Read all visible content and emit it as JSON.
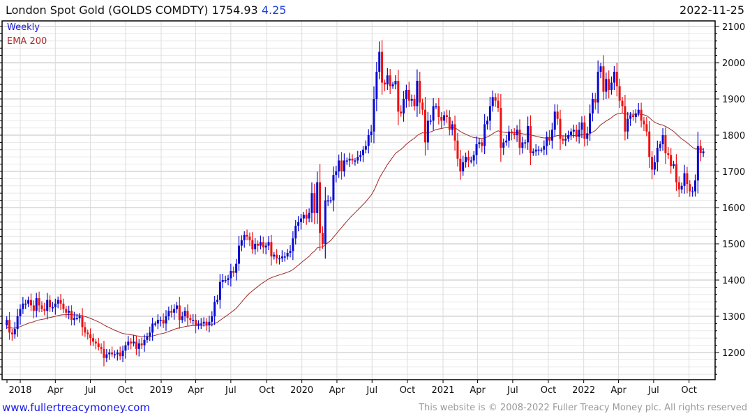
{
  "header": {
    "title": "London Spot Gold (GOLDS COMDTY) 1754.93",
    "change": "4.25",
    "date": "2022-11-25"
  },
  "legend": {
    "period": "Weekly",
    "indicator": "EMA 200"
  },
  "footer": {
    "site": "www.fullertreacymoney.com",
    "copyright": "This website is © 2008-2022 Fuller Treacy Money plc. All rights reserved"
  },
  "colors": {
    "up": "#0a0ad0",
    "down": "#ee1111",
    "ema": "#a02828",
    "grid_major": "#c0c0c0",
    "grid_minor": "#e8e8e8"
  },
  "chart_data": {
    "type": "candlestick",
    "title": "London Spot Gold (GOLDS COMDTY)",
    "period": "weekly",
    "first_week_offset": -5,
    "ylim": [
      1130,
      2110
    ],
    "y_ticks": [
      1200,
      1300,
      1400,
      1500,
      1600,
      1700,
      1800,
      1900,
      2000,
      2100
    ],
    "x_ticks": [
      {
        "label": "2018",
        "week": 0
      },
      {
        "label": "Apr",
        "week": 13
      },
      {
        "label": "Jul",
        "week": 26
      },
      {
        "label": "Oct",
        "week": 39
      },
      {
        "label": "2019",
        "week": 52.2
      },
      {
        "label": "Apr",
        "week": 65
      },
      {
        "label": "Jul",
        "week": 78
      },
      {
        "label": "Oct",
        "week": 91.3
      },
      {
        "label": "2020",
        "week": 104.3
      },
      {
        "label": "Apr",
        "week": 117.3
      },
      {
        "label": "Jul",
        "week": 130.3
      },
      {
        "label": "Oct",
        "week": 143.4
      },
      {
        "label": "2021",
        "week": 156.6
      },
      {
        "label": "Apr",
        "week": 169.4
      },
      {
        "label": "Jul",
        "week": 182.4
      },
      {
        "label": "Oct",
        "week": 195.6
      },
      {
        "label": "2022",
        "week": 208.7
      },
      {
        "label": "Apr",
        "week": 221.6
      },
      {
        "label": "Jul",
        "week": 234.6
      },
      {
        "label": "Oct",
        "week": 247.7
      }
    ],
    "ema_period_weeks": 40,
    "ema_seed": 1268,
    "first_open": 1275,
    "closes": [
      1290,
      1255,
      1250,
      1265,
      1300,
      1320,
      1335,
      1335,
      1345,
      1330,
      1315,
      1350,
      1330,
      1320,
      1315,
      1345,
      1325,
      1325,
      1335,
      1345,
      1335,
      1320,
      1310,
      1315,
      1290,
      1295,
      1295,
      1300,
      1270,
      1255,
      1250,
      1240,
      1230,
      1225,
      1215,
      1210,
      1185,
      1195,
      1200,
      1195,
      1195,
      1200,
      1190,
      1205,
      1220,
      1230,
      1225,
      1230,
      1210,
      1225,
      1220,
      1235,
      1245,
      1255,
      1280,
      1280,
      1290,
      1290,
      1280,
      1300,
      1315,
      1310,
      1320,
      1330,
      1290,
      1300,
      1315,
      1295,
      1290,
      1290,
      1275,
      1280,
      1280,
      1285,
      1275,
      1285,
      1300,
      1340,
      1345,
      1395,
      1400,
      1400,
      1405,
      1425,
      1420,
      1445,
      1495,
      1510,
      1525,
      1520,
      1510,
      1485,
      1500,
      1495,
      1505,
      1490,
      1495,
      1505,
      1465,
      1470,
      1460,
      1460,
      1465,
      1465,
      1475,
      1480,
      1515,
      1550,
      1560,
      1570,
      1580,
      1570,
      1585,
      1640,
      1585,
      1670,
      1530,
      1500,
      1620,
      1620,
      1620,
      1690,
      1700,
      1730,
      1700,
      1730,
      1730,
      1735,
      1730,
      1730,
      1740,
      1745,
      1760,
      1770,
      1800,
      1810,
      1900,
      1975,
      2030,
      1945,
      1940,
      1965,
      1935,
      1940,
      1950,
      1865,
      1860,
      1900,
      1925,
      1895,
      1900,
      1880,
      1950,
      1890,
      1870,
      1780,
      1840,
      1840,
      1880,
      1880,
      1850,
      1840,
      1855,
      1850,
      1815,
      1830,
      1785,
      1735,
      1700,
      1725,
      1740,
      1730,
      1730,
      1745,
      1775,
      1780,
      1770,
      1830,
      1840,
      1880,
      1905,
      1895,
      1875,
      1765,
      1780,
      1785,
      1810,
      1805,
      1800,
      1815,
      1765,
      1780,
      1780,
      1825,
      1750,
      1755,
      1760,
      1760,
      1760,
      1770,
      1795,
      1785,
      1815,
      1865,
      1845,
      1790,
      1785,
      1790,
      1800,
      1810,
      1815,
      1795,
      1815,
      1835,
      1790,
      1805,
      1860,
      1900,
      1890,
      1975,
      1990,
      1920,
      1955,
      1925,
      1945,
      1975,
      1935,
      1895,
      1880,
      1810,
      1845,
      1855,
      1850,
      1860,
      1870,
      1840,
      1830,
      1810,
      1740,
      1705,
      1725,
      1765,
      1775,
      1800,
      1750,
      1745,
      1715,
      1720,
      1670,
      1650,
      1660,
      1695,
      1665,
      1645,
      1645,
      1675,
      1770,
      1750,
      1755
    ]
  }
}
